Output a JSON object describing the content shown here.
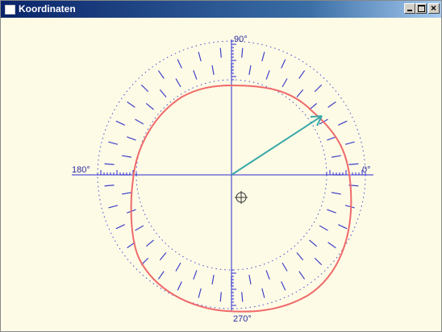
{
  "window": {
    "title": "Koordinaten"
  },
  "canvas": {
    "labels": {
      "top": "90°",
      "left": "180°",
      "right": "0°",
      "bottom": "270°"
    }
  }
}
